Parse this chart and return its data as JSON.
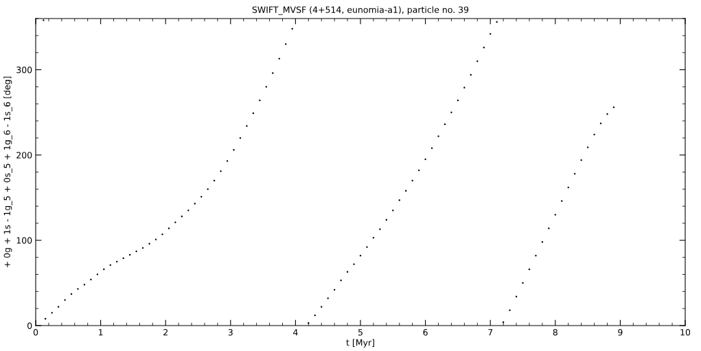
{
  "chart_data": {
    "type": "scatter",
    "title": "SWIFT_MVSF (4+514, eunomia-a1), particle no. 39",
    "xlabel": "t [Myr]",
    "ylabel": "+ 0g + 1s - 1g_5 + 0s_5 + 1g_6 - 1s_6 [deg]",
    "xlim": [
      0,
      10
    ],
    "ylim": [
      0,
      360
    ],
    "xticks": [
      0,
      1,
      2,
      3,
      4,
      5,
      6,
      7,
      8,
      9,
      10
    ],
    "yticks": [
      0,
      100,
      200,
      300
    ],
    "grid": false,
    "series": [
      {
        "color": "#000000",
        "x": [
          0.12,
          0.15,
          0.25,
          0.35,
          0.45,
          0.55,
          0.65,
          0.75,
          0.85,
          0.95,
          1.05,
          1.15,
          1.25,
          1.35,
          1.45,
          1.55,
          1.65,
          1.75,
          1.85,
          1.95,
          2.05,
          2.15,
          2.25,
          2.35,
          2.45,
          2.55,
          2.65,
          2.75,
          2.85,
          2.95,
          3.05,
          3.15,
          3.25,
          3.35,
          3.45,
          3.55,
          3.65,
          3.75,
          3.85,
          3.95,
          4.2,
          4.3,
          4.4,
          4.5,
          4.6,
          4.7,
          4.8,
          4.9,
          5.0,
          5.1,
          5.2,
          5.3,
          5.4,
          5.5,
          5.6,
          5.7,
          5.8,
          5.9,
          6.0,
          6.1,
          6.2,
          6.3,
          6.4,
          6.5,
          6.6,
          6.7,
          6.8,
          6.9,
          7.0,
          7.1,
          7.2,
          7.3,
          7.4,
          7.5,
          7.6,
          7.7,
          7.8,
          7.9,
          8.0,
          8.1,
          8.2,
          8.3,
          8.4,
          8.5,
          8.6,
          8.7,
          8.8,
          8.9
        ],
        "values": [
          358,
          8,
          15,
          22,
          30,
          37,
          43,
          48,
          54,
          60,
          66,
          71,
          75,
          79,
          83,
          87,
          91,
          96,
          101,
          107,
          114,
          121,
          128,
          135,
          143,
          151,
          160,
          170,
          181,
          193,
          206,
          220,
          234,
          249,
          264,
          280,
          296,
          313,
          330,
          348,
          3,
          12,
          22,
          32,
          42,
          53,
          63,
          72,
          82,
          92,
          103,
          113,
          124,
          135,
          147,
          158,
          170,
          182,
          195,
          208,
          222,
          236,
          250,
          264,
          279,
          294,
          310,
          326,
          342,
          356,
          4,
          18,
          34,
          50,
          66,
          82,
          98,
          114,
          130,
          146,
          162,
          178,
          194,
          209,
          224,
          237,
          248,
          256
        ]
      }
    ]
  }
}
